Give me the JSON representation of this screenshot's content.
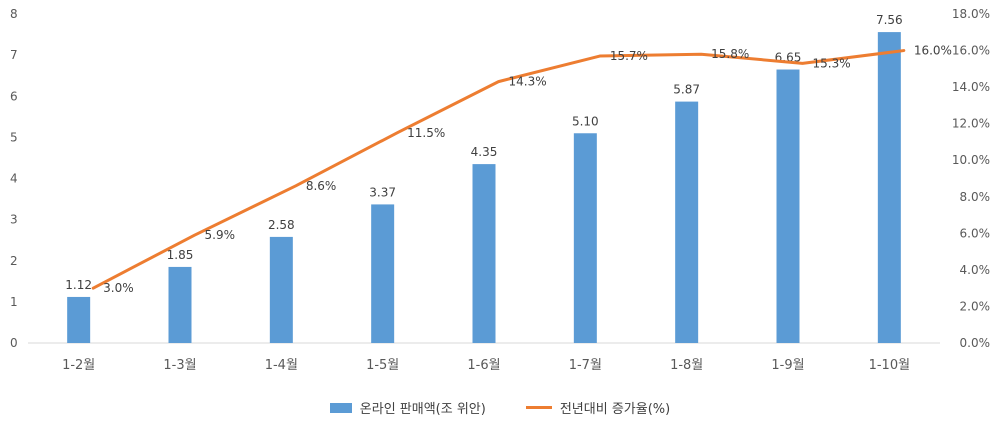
{
  "chart_data": {
    "type": "bar",
    "categories": [
      "1-2월",
      "1-3월",
      "1-4월",
      "1-5월",
      "1-6월",
      "1-7월",
      "1-8월",
      "1-9월",
      "1-10월"
    ],
    "series": [
      {
        "name": "온라인 판매액(조 위안)",
        "type": "bar",
        "axis": "left",
        "color": "#5B9BD5",
        "values": [
          1.12,
          1.85,
          2.58,
          3.37,
          4.35,
          5.1,
          5.87,
          6.65,
          7.56
        ],
        "labels": [
          "1.12",
          "1.85",
          "2.58",
          "3.37",
          "4.35",
          "5.10",
          "5.87",
          "6.65",
          "7.56"
        ]
      },
      {
        "name": "전년대비 증가율(%)",
        "type": "line",
        "axis": "right",
        "color": "#ED7D31",
        "values": [
          3.0,
          5.9,
          8.6,
          11.5,
          14.3,
          15.7,
          15.8,
          15.3,
          16.0
        ],
        "labels": [
          "3.0%",
          "5.9%",
          "8.6%",
          "11.5%",
          "14.3%",
          "15.7%",
          "15.8%",
          "15.3%",
          "16.0%"
        ]
      }
    ],
    "y_left": {
      "ylim": [
        0,
        8
      ],
      "ticks": [
        "0",
        "1",
        "2",
        "3",
        "4",
        "5",
        "6",
        "7",
        "8"
      ]
    },
    "y_right": {
      "ylim": [
        0,
        18
      ],
      "ticks": [
        "0.0%",
        "2.0%",
        "4.0%",
        "6.0%",
        "8.0%",
        "10.0%",
        "12.0%",
        "14.0%",
        "16.0%",
        "18.0%"
      ]
    },
    "grid": false,
    "legend_position": "bottom"
  }
}
